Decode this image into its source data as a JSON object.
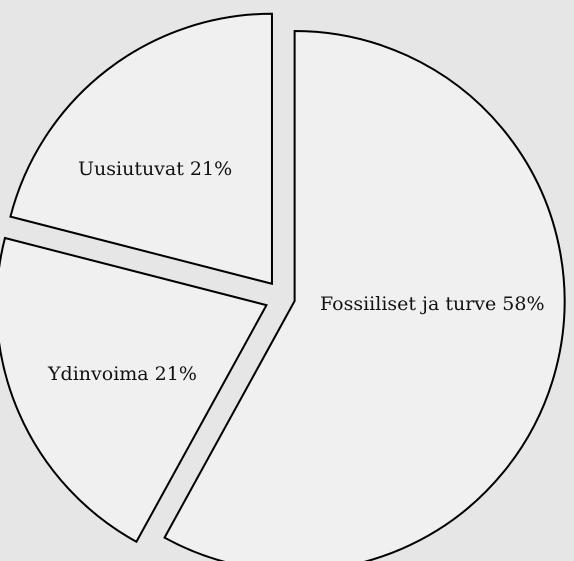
{
  "chart_data": {
    "type": "pie",
    "title": "",
    "slices": [
      {
        "label": "Fossiiliset ja turve 58%",
        "category": "Fossiiliset ja turve",
        "value": 58
      },
      {
        "label": "Ydinvoima 21%",
        "category": "Ydinvoima",
        "value": 21
      },
      {
        "label": "Uusiutuvat 21%",
        "category": "Uusiutuvat",
        "value": 21
      }
    ],
    "exploded": true,
    "legend": "none",
    "colors": {
      "slice_fill": "#f0f0f0",
      "slice_stroke": "#000000",
      "background": "#e6e6e6"
    }
  }
}
